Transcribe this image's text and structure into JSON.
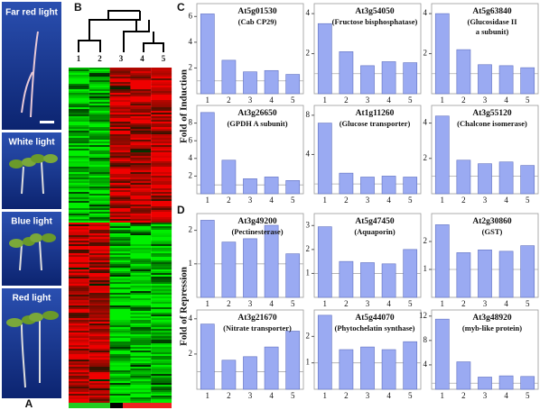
{
  "panels": [
    "A",
    "B",
    "C",
    "D"
  ],
  "photos": [
    "Far red light",
    "White light",
    "Blue light",
    "Red light"
  ],
  "heatmap": {
    "columns": [
      "1",
      "2",
      "3",
      "4",
      "5"
    ]
  },
  "axis_labels": [
    "Fold of Induction",
    "Fold of Repression"
  ],
  "chart_data": [
    {
      "type": "bar",
      "title": "At5g01530",
      "subtitle": [
        "(Cab CP29)"
      ],
      "categories": [
        "1",
        "2",
        "3",
        "4",
        "5"
      ],
      "values": [
        6.2,
        2.6,
        1.7,
        1.8,
        1.5
      ],
      "ylim": [
        0,
        7
      ],
      "yticks": [
        2,
        4,
        6
      ],
      "reference": 1,
      "color": "#9aaaf2"
    },
    {
      "type": "bar",
      "title": "At3g54050",
      "subtitle": [
        "(Fructose bisphosphatase)"
      ],
      "categories": [
        "1",
        "2",
        "3",
        "4",
        "5"
      ],
      "values": [
        3.5,
        2.1,
        1.4,
        1.6,
        1.55
      ],
      "ylim": [
        0,
        4.5
      ],
      "yticks": [
        2,
        4
      ],
      "reference": 1,
      "color": "#9aaaf2"
    },
    {
      "type": "bar",
      "title": "At5g63840",
      "subtitle": [
        "(Glucosidase II",
        "a subunit)"
      ],
      "categories": [
        "1",
        "2",
        "3",
        "4",
        "5"
      ],
      "values": [
        4.0,
        2.2,
        1.45,
        1.4,
        1.3
      ],
      "ylim": [
        0,
        4.5
      ],
      "yticks": [
        2,
        4
      ],
      "reference": 1,
      "color": "#9aaaf2"
    },
    {
      "type": "bar",
      "title": "At3g26650",
      "subtitle": [
        "(GPDH A subunit)"
      ],
      "categories": [
        "1",
        "2",
        "3",
        "4",
        "5"
      ],
      "values": [
        9.2,
        3.8,
        1.7,
        1.9,
        1.5
      ],
      "ylim": [
        0,
        10
      ],
      "yticks": [
        2,
        4,
        6,
        8
      ],
      "reference": 1,
      "color": "#9aaaf2"
    },
    {
      "type": "bar",
      "title": "At1g11260",
      "subtitle": [
        "(Glucose transporter)"
      ],
      "categories": [
        "1",
        "2",
        "3",
        "4",
        "5"
      ],
      "values": [
        7.2,
        2.1,
        1.7,
        1.8,
        1.7
      ],
      "ylim": [
        0,
        9
      ],
      "yticks": [
        4,
        8
      ],
      "reference": 1,
      "color": "#9aaaf2"
    },
    {
      "type": "bar",
      "title": "At3g55120",
      "subtitle": [
        "(Chalcone isomerase)"
      ],
      "categories": [
        "1",
        "2",
        "3",
        "4",
        "5"
      ],
      "values": [
        4.4,
        1.9,
        1.7,
        1.8,
        1.6
      ],
      "ylim": [
        0,
        5
      ],
      "yticks": [
        2,
        4
      ],
      "reference": 1,
      "color": "#9aaaf2"
    },
    {
      "type": "bar",
      "title": "At3g49200",
      "subtitle": [
        "(Pectinesterase)"
      ],
      "categories": [
        "1",
        "2",
        "3",
        "4",
        "5"
      ],
      "values": [
        2.3,
        1.65,
        1.75,
        2.15,
        1.3
      ],
      "ylim": [
        0,
        2.5
      ],
      "yticks": [
        1,
        2
      ],
      "reference": 1,
      "color": "#9aaaf2"
    },
    {
      "type": "bar",
      "title": "At5g47450",
      "subtitle": [
        "(Aquaporin)"
      ],
      "categories": [
        "1",
        "2",
        "3",
        "4",
        "5"
      ],
      "values": [
        2.95,
        1.5,
        1.45,
        1.4,
        2.0
      ],
      "ylim": [
        0,
        3.5
      ],
      "yticks": [
        1,
        2,
        3
      ],
      "reference": 1,
      "color": "#9aaaf2"
    },
    {
      "type": "bar",
      "title": "At2g30860",
      "subtitle": [
        "(GST)"
      ],
      "categories": [
        "1",
        "2",
        "3",
        "4",
        "5"
      ],
      "values": [
        2.6,
        1.6,
        1.7,
        1.65,
        1.85
      ],
      "ylim": [
        0,
        3
      ],
      "yticks": [
        1,
        2
      ],
      "reference": 1,
      "color": "#9aaaf2"
    },
    {
      "type": "bar",
      "title": "At3g21670",
      "subtitle": [
        "(Nitrate transporter)"
      ],
      "categories": [
        "1",
        "2",
        "3",
        "4",
        "5"
      ],
      "values": [
        3.7,
        1.65,
        1.85,
        2.4,
        3.3
      ],
      "ylim": [
        0,
        4.5
      ],
      "yticks": [
        2,
        4
      ],
      "reference": 1,
      "color": "#9aaaf2"
    },
    {
      "type": "bar",
      "title": "At5g44070",
      "subtitle": [
        "(Phytochelatin synthase)"
      ],
      "categories": [
        "1",
        "2",
        "3",
        "4",
        "5"
      ],
      "values": [
        2.8,
        1.5,
        1.6,
        1.5,
        1.8
      ],
      "ylim": [
        0,
        3
      ],
      "yticks": [
        1,
        2
      ],
      "reference": 1,
      "color": "#9aaaf2"
    },
    {
      "type": "bar",
      "title": "At3g48920",
      "subtitle": [
        "(myb-like protein)"
      ],
      "categories": [
        "1",
        "2",
        "3",
        "4",
        "5"
      ],
      "values": [
        11.5,
        4.5,
        2.0,
        2.2,
        2.1
      ],
      "ylim": [
        0,
        13
      ],
      "yticks": [
        4,
        8,
        12
      ],
      "reference": 1,
      "color": "#9aaaf2"
    }
  ]
}
